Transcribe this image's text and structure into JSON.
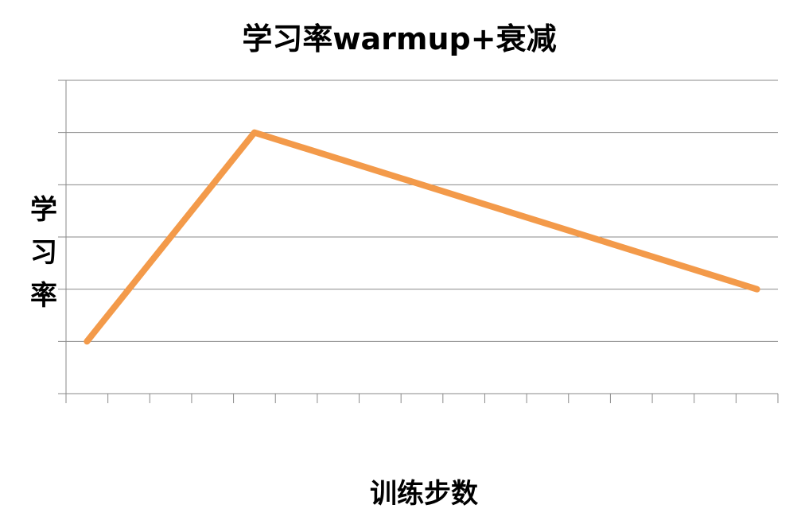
{
  "chart_data": {
    "type": "line",
    "title": "学习率warmup+衰减",
    "xlabel": "训练步数",
    "ylabel": "学习率",
    "x": [
      0.5,
      4.5,
      16.5
    ],
    "xlim": [
      0,
      17
    ],
    "x_ticks_count": 17,
    "ylim": [
      0,
      6
    ],
    "y_grid_lines": 6,
    "grid": true,
    "series": [
      {
        "values": [
          1,
          5,
          2
        ],
        "color": "#F39A4A"
      }
    ]
  }
}
